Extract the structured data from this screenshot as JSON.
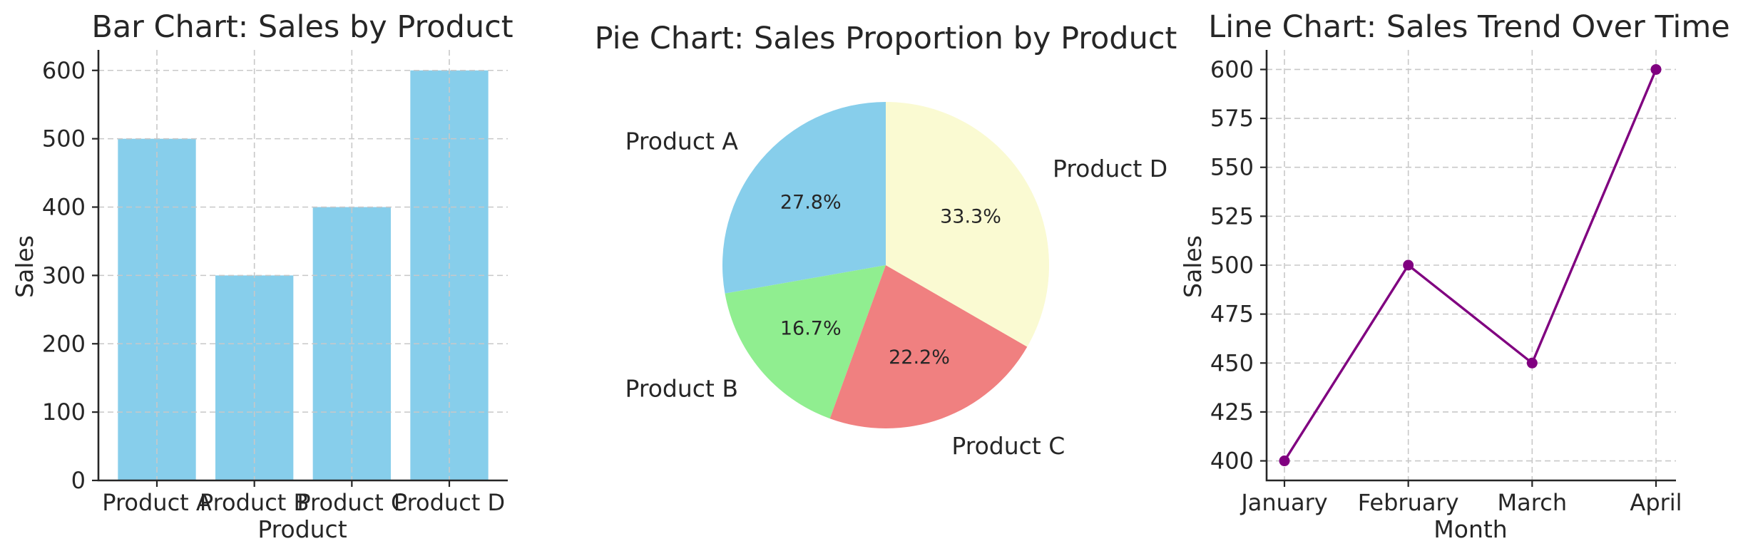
{
  "chart_data": [
    {
      "type": "bar",
      "title": "Bar Chart: Sales by Product",
      "xlabel": "Product",
      "ylabel": "Sales",
      "categories": [
        "Product A",
        "Product B",
        "Product C",
        "Product D"
      ],
      "values": [
        500,
        300,
        400,
        600
      ],
      "ylim": [
        0,
        630
      ],
      "yticks": [
        0,
        100,
        200,
        300,
        400,
        500,
        600
      ],
      "grid": true,
      "color": "#87CEEB"
    },
    {
      "type": "pie",
      "title": "Pie Chart: Sales Proportion by Product",
      "labels": [
        "Product A",
        "Product B",
        "Product C",
        "Product D"
      ],
      "values": [
        500,
        300,
        400,
        600
      ],
      "percent_labels": [
        "27.8%",
        "16.7%",
        "22.2%",
        "33.3%"
      ],
      "colors": [
        "#87CEEB",
        "#90EE90",
        "#F08080",
        "#FAFAD2"
      ]
    },
    {
      "type": "line",
      "title": "Line Chart: Sales Trend Over Time",
      "xlabel": "Month",
      "ylabel": "Sales",
      "x": [
        "January",
        "February",
        "March",
        "April"
      ],
      "values": [
        400,
        500,
        450,
        600
      ],
      "ylim": [
        390,
        610
      ],
      "yticks": [
        400,
        425,
        450,
        475,
        500,
        525,
        550,
        575,
        600
      ],
      "grid": true,
      "color": "#800080"
    }
  ]
}
